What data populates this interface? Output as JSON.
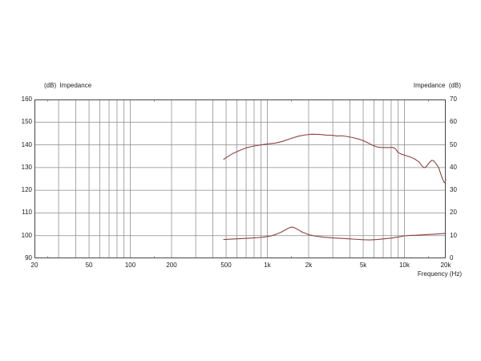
{
  "chart_data": {
    "type": "line",
    "title": "",
    "xlabel": "Frequency  (Hz)",
    "left_axis_label": "(dB)  Impedance",
    "right_axis_label": "Impedance  (dB)",
    "x_scale": "log",
    "x_range": [
      20,
      20000
    ],
    "left_range": [
      90,
      160
    ],
    "right_range": [
      0,
      70
    ],
    "grid": true,
    "legend_position": "none",
    "left_tick_labels": [
      "160",
      "150",
      "140",
      "130",
      "120",
      "110",
      "100",
      "90"
    ],
    "left_tick_values": [
      160,
      150,
      140,
      130,
      120,
      110,
      100,
      90
    ],
    "right_tick_labels": [
      "70",
      "60",
      "50",
      "40",
      "30",
      "20",
      "10",
      "0"
    ],
    "right_tick_values": [
      70,
      60,
      50,
      40,
      30,
      20,
      10,
      0
    ],
    "x_tick_labels": [
      "20",
      "50",
      "100",
      "200",
      "500",
      "1k",
      "2k",
      "5k",
      "10k",
      "20k"
    ],
    "x_tick_values": [
      20,
      50,
      100,
      200,
      500,
      1000,
      2000,
      5000,
      10000,
      20000
    ],
    "grid_frequencies": [
      30,
      40,
      50,
      60,
      70,
      80,
      90,
      100,
      200,
      300,
      400,
      500,
      600,
      700,
      800,
      900,
      1000,
      2000,
      3000,
      4000,
      5000,
      6000,
      7000,
      8000,
      9000,
      10000
    ],
    "grid_levels_left": [
      150,
      140,
      130,
      120,
      110,
      100
    ],
    "minor_tick_frequencies": [
      25,
      150,
      1500,
      15000
    ],
    "line_color": "#8b4343",
    "grid_color": "#8a8a8a",
    "border_color": "#454545",
    "series": [
      {
        "name": "spl-response-upper-curve",
        "axis": "left",
        "unit": "dB",
        "points": [
          [
            480,
            133.6
          ],
          [
            500,
            134.4
          ],
          [
            560,
            136.2
          ],
          [
            630,
            137.6
          ],
          [
            710,
            138.8
          ],
          [
            800,
            139.5
          ],
          [
            900,
            140.0
          ],
          [
            1000,
            140.4
          ],
          [
            1150,
            140.8
          ],
          [
            1300,
            141.6
          ],
          [
            1500,
            142.9
          ],
          [
            1700,
            143.9
          ],
          [
            1900,
            144.4
          ],
          [
            2100,
            144.7
          ],
          [
            2400,
            144.6
          ],
          [
            2700,
            144.3
          ],
          [
            3000,
            144.2
          ],
          [
            3200,
            143.9
          ],
          [
            3500,
            144.0
          ],
          [
            3800,
            143.7
          ],
          [
            4200,
            143.2
          ],
          [
            4600,
            142.6
          ],
          [
            5000,
            141.9
          ],
          [
            5400,
            140.9
          ],
          [
            5900,
            139.7
          ],
          [
            6400,
            139.0
          ],
          [
            7000,
            138.8
          ],
          [
            7600,
            138.8
          ],
          [
            8200,
            138.9
          ],
          [
            8600,
            138.3
          ],
          [
            9000,
            136.6
          ],
          [
            9600,
            135.8
          ],
          [
            10300,
            135.2
          ],
          [
            11000,
            134.7
          ],
          [
            12000,
            133.6
          ],
          [
            12800,
            132.4
          ],
          [
            13400,
            130.8
          ],
          [
            13900,
            129.9
          ],
          [
            14400,
            130.3
          ],
          [
            15100,
            132.0
          ],
          [
            15800,
            133.2
          ],
          [
            16300,
            133.0
          ],
          [
            17000,
            131.7
          ],
          [
            17700,
            130.2
          ],
          [
            18300,
            127.6
          ],
          [
            18900,
            125.2
          ],
          [
            19400,
            123.6
          ],
          [
            19700,
            123.3
          ],
          [
            20000,
            124.7
          ]
        ]
      },
      {
        "name": "impedance-lower-curve",
        "axis": "right",
        "unit": "dB",
        "points": [
          [
            480,
            8.3
          ],
          [
            560,
            8.5
          ],
          [
            650,
            8.7
          ],
          [
            750,
            8.9
          ],
          [
            850,
            9.1
          ],
          [
            950,
            9.4
          ],
          [
            1050,
            9.8
          ],
          [
            1150,
            10.5
          ],
          [
            1250,
            11.4
          ],
          [
            1350,
            12.5
          ],
          [
            1450,
            13.5
          ],
          [
            1520,
            13.8
          ],
          [
            1600,
            13.3
          ],
          [
            1700,
            12.4
          ],
          [
            1800,
            11.5
          ],
          [
            1900,
            11.0
          ],
          [
            2000,
            10.4
          ],
          [
            2150,
            10.0
          ],
          [
            2350,
            9.6
          ],
          [
            2600,
            9.3
          ],
          [
            3000,
            9.0
          ],
          [
            3400,
            8.8
          ],
          [
            3900,
            8.6
          ],
          [
            4400,
            8.4
          ],
          [
            5000,
            8.2
          ],
          [
            5600,
            8.1
          ],
          [
            6300,
            8.3
          ],
          [
            7100,
            8.6
          ],
          [
            8000,
            8.9
          ],
          [
            9000,
            9.4
          ],
          [
            10000,
            9.9
          ],
          [
            11000,
            10.1
          ],
          [
            12200,
            10.2
          ],
          [
            13900,
            10.4
          ],
          [
            15900,
            10.6
          ],
          [
            18200,
            10.8
          ],
          [
            20000,
            11.0
          ]
        ]
      }
    ]
  }
}
